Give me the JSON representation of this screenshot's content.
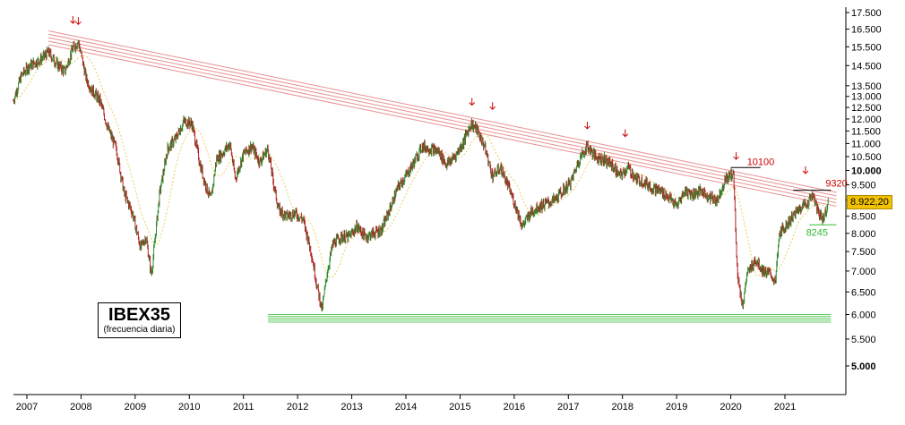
{
  "chart_data": {
    "type": "line",
    "title": "IBEX35",
    "subtitle": "(frecuencia diaria)",
    "x_ticks": [
      "2007",
      "2008",
      "2009",
      "2010",
      "2011",
      "2012",
      "2013",
      "2014",
      "2015",
      "2016",
      "2017",
      "2018",
      "2019",
      "2020",
      "2021"
    ],
    "y_ticks": [
      "17.500",
      "16.500",
      "15.500",
      "14.500",
      "13.500",
      "13.000",
      "12.500",
      "12.000",
      "11.500",
      "11.000",
      "10.500",
      "10.000",
      "9.500",
      "9.000",
      "8.500",
      "8.000",
      "7.500",
      "7.000",
      "6.500",
      "6.000",
      "5.500",
      "5.000"
    ],
    "y_tick_values": [
      17500,
      16500,
      15500,
      14500,
      13500,
      13000,
      12500,
      12000,
      11500,
      11000,
      10500,
      10000,
      9500,
      9000,
      8500,
      8000,
      7500,
      7000,
      6500,
      6000,
      5500,
      5000
    ],
    "y_scale": "log",
    "ylim": [
      4300,
      18000
    ],
    "xlim": [
      2006.7,
      2021.95
    ],
    "grid": false,
    "series": [
      {
        "x": [
          2006.75,
          2006.9,
          2007.05,
          2007.25,
          2007.4,
          2007.55,
          2007.7,
          2007.85,
          2007.95,
          2008.1,
          2008.2,
          2008.35,
          2008.5,
          2008.65,
          2008.8,
          2008.95,
          2009.1,
          2009.2,
          2009.3,
          2009.45,
          2009.6,
          2009.75,
          2009.9,
          2010.05,
          2010.2,
          2010.3,
          2010.4,
          2010.5,
          2010.6,
          2010.75,
          2010.85,
          2011.0,
          2011.15,
          2011.3,
          2011.45,
          2011.55,
          2011.65,
          2011.8,
          2011.95,
          2012.1,
          2012.25,
          2012.35,
          2012.45,
          2012.55,
          2012.65,
          2012.8,
          2012.95,
          2013.1,
          2013.25,
          2013.4,
          2013.55,
          2013.7,
          2013.85,
          2014.0,
          2014.15,
          2014.3,
          2014.45,
          2014.6,
          2014.75,
          2014.9,
          2015.05,
          2015.2,
          2015.3,
          2015.45,
          2015.6,
          2015.75,
          2015.9,
          2016.05,
          2016.15,
          2016.3,
          2016.45,
          2016.6,
          2016.75,
          2016.9,
          2017.05,
          2017.2,
          2017.35,
          2017.5,
          2017.65,
          2017.8,
          2017.95,
          2018.1,
          2018.25,
          2018.4,
          2018.55,
          2018.7,
          2018.85,
          2019.0,
          2019.15,
          2019.3,
          2019.45,
          2019.6,
          2019.75,
          2019.9,
          2020.05,
          2020.12,
          2020.17,
          2020.22,
          2020.3,
          2020.45,
          2020.6,
          2020.75,
          2020.82,
          2020.9,
          2021.0,
          2021.15,
          2021.3,
          2021.42,
          2021.5,
          2021.6,
          2021.7,
          2021.8
        ],
        "values": [
          12800,
          14000,
          14500,
          14800,
          15200,
          14600,
          14200,
          15400,
          15800,
          13800,
          13300,
          12800,
          11600,
          10800,
          9200,
          8600,
          7600,
          7900,
          6900,
          9200,
          10800,
          11200,
          11900,
          11800,
          10200,
          9500,
          9000,
          10400,
          10600,
          11000,
          9700,
          10600,
          10900,
          10300,
          10800,
          9600,
          8700,
          8500,
          8600,
          8400,
          7500,
          6700,
          6100,
          7000,
          7700,
          7900,
          7900,
          8200,
          7900,
          8000,
          8100,
          8700,
          9400,
          9800,
          10300,
          10900,
          10800,
          10700,
          10200,
          10500,
          11000,
          11800,
          11600,
          10900,
          9800,
          10100,
          9400,
          8700,
          8200,
          8600,
          8800,
          8900,
          9000,
          9300,
          9600,
          10400,
          10900,
          10500,
          10400,
          10200,
          9800,
          10100,
          9700,
          9600,
          9400,
          9300,
          9100,
          8800,
          9300,
          9200,
          9300,
          9100,
          9000,
          9700,
          9900,
          7000,
          6500,
          6200,
          6900,
          7300,
          7000,
          6900,
          6700,
          8000,
          8200,
          8500,
          8800,
          8900,
          9200,
          8700,
          8400,
          8922.2
        ]
      }
    ],
    "annotations": {
      "resistance_top": "10100",
      "resistance_recent": "9320",
      "support_recent": "8245",
      "last_value": "8.922,20"
    },
    "colors": {
      "trend_lines": "#e89090",
      "arrows": "#cc0000",
      "support_band": "#66cc66",
      "ma_line": "#e8d060",
      "candle_up": "#2e8b2e",
      "candle_down": "#b22222",
      "last_tag": "#f2c200",
      "label_red": "#cc0000",
      "label_green": "#33bb33"
    }
  }
}
